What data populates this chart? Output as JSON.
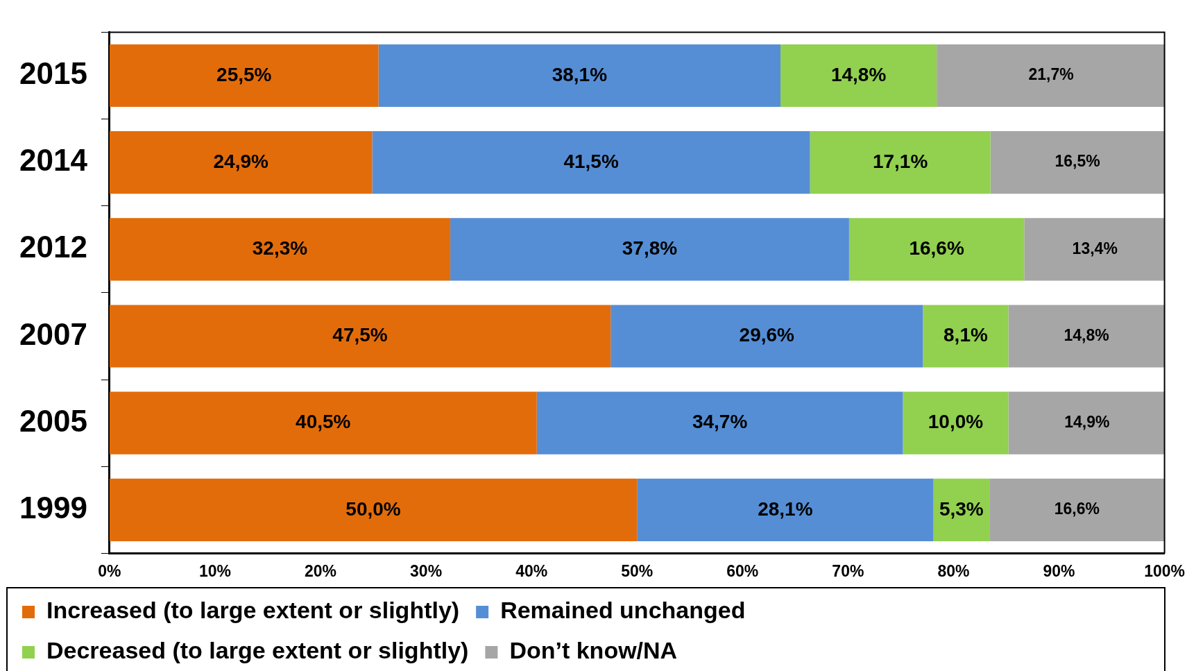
{
  "chart_data": {
    "type": "bar",
    "orientation": "horizontal",
    "stacked": true,
    "categories": [
      "2015",
      "2014",
      "2012",
      "2007",
      "2005",
      "1999"
    ],
    "series": [
      {
        "name": "Increased (to large extent or slightly)",
        "color": "#e36c0a",
        "values": [
          25.5,
          24.9,
          32.3,
          47.5,
          40.5,
          50.0
        ],
        "value_labels": [
          "25,5%",
          "24,9%",
          "32,3%",
          "47,5%",
          "40,5%",
          "50,0%"
        ]
      },
      {
        "name": "Remained unchanged",
        "color": "#558ed5",
        "values": [
          38.1,
          41.5,
          37.8,
          29.6,
          34.7,
          28.1
        ],
        "value_labels": [
          "38,1%",
          "41,5%",
          "37,8%",
          "29,6%",
          "34,7%",
          "28,1%"
        ]
      },
      {
        "name": "Decreased (to large extent or slightly)",
        "color": "#92d050",
        "values": [
          14.8,
          17.1,
          16.6,
          8.1,
          10.0,
          5.3
        ],
        "value_labels": [
          "14,8%",
          "17,1%",
          "16,6%",
          "8,1%",
          "10,0%",
          "5,3%"
        ]
      },
      {
        "name": "Don’t know/NA",
        "color": "#a6a6a6",
        "values": [
          21.7,
          16.5,
          13.4,
          14.8,
          14.9,
          16.6
        ],
        "value_labels": [
          "21,7%",
          "16,5%",
          "13,4%",
          "14,8%",
          "14,9%",
          "16,6%"
        ]
      }
    ],
    "xlim": [
      0,
      100
    ],
    "xticks": [
      {
        "value": 0,
        "label": "0%"
      },
      {
        "value": 10,
        "label": "10%"
      },
      {
        "value": 20,
        "label": "20%"
      },
      {
        "value": 30,
        "label": "30%"
      },
      {
        "value": 40,
        "label": "40%"
      },
      {
        "value": 50,
        "label": "50%"
      },
      {
        "value": 60,
        "label": "60%"
      },
      {
        "value": 70,
        "label": "70%"
      },
      {
        "value": 80,
        "label": "80%"
      },
      {
        "value": 90,
        "label": "90%"
      },
      {
        "value": 100,
        "label": "100%"
      }
    ],
    "legend": "bottom"
  }
}
